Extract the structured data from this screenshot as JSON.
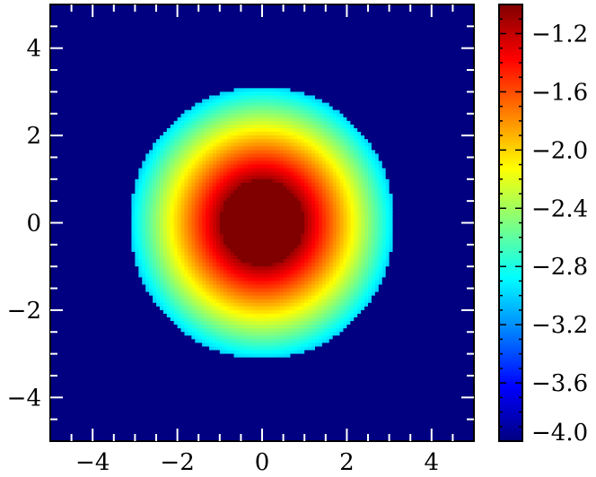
{
  "chart_data": {
    "type": "heatmap",
    "title": "",
    "xlabel": "",
    "ylabel": "",
    "xlim": [
      -5,
      5
    ],
    "ylim": [
      -5,
      5
    ],
    "x_ticks": [
      {
        "value": -4,
        "label": "−4"
      },
      {
        "value": -2,
        "label": "−2"
      },
      {
        "value": 0,
        "label": "0"
      },
      {
        "value": 2,
        "label": "2"
      },
      {
        "value": 4,
        "label": "4"
      }
    ],
    "y_ticks": [
      {
        "value": -4,
        "label": "−4"
      },
      {
        "value": -2,
        "label": "−2"
      },
      {
        "value": 0,
        "label": "0"
      },
      {
        "value": 2,
        "label": "2"
      },
      {
        "value": 4,
        "label": "4"
      }
    ],
    "minor_tick_step": 0.5,
    "colormap": "jet",
    "colorbar": {
      "range": [
        -4.0,
        -1.0
      ],
      "ticks": [
        {
          "value": -1.2,
          "label": "−1.2"
        },
        {
          "value": -1.6,
          "label": "−1.6"
        },
        {
          "value": -2.0,
          "label": "−2.0"
        },
        {
          "value": -2.4,
          "label": "−2.4"
        },
        {
          "value": -2.8,
          "label": "−2.8"
        },
        {
          "value": -3.2,
          "label": "−3.2"
        },
        {
          "value": -3.6,
          "label": "−3.6"
        },
        {
          "value": -4.0,
          "label": "−4.0"
        }
      ],
      "minor_tick_step": 0.1
    },
    "field": {
      "description_type": "radial",
      "background_value": -4.0,
      "core_radius": 1.0,
      "core_value": -1.0,
      "outer_radius": 3.12,
      "value_at_core_edge": -1.1,
      "value_at_outer_edge": -3.0
    }
  }
}
